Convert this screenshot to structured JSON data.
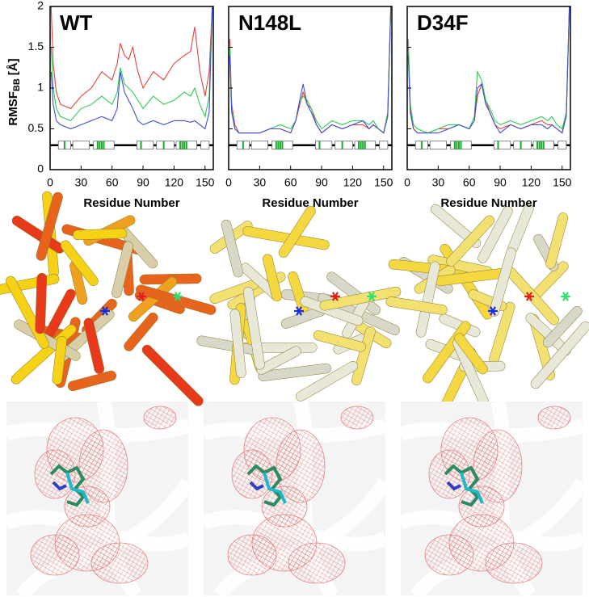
{
  "chart_data": [
    {
      "type": "line",
      "title": "WT",
      "xlabel": "Residue Number",
      "ylabel": {
        "main": "RMSF",
        "sub": "BB",
        "unit": "[Å]"
      },
      "xlim": [
        0,
        158
      ],
      "ylim": [
        0,
        2
      ],
      "xticks": [
        0,
        30,
        60,
        90,
        120,
        150
      ],
      "yticks": [
        0,
        0.5,
        1,
        1.5,
        2
      ],
      "x": [
        1,
        3,
        6,
        10,
        20,
        30,
        40,
        50,
        60,
        65,
        68,
        72,
        76,
        80,
        85,
        90,
        100,
        110,
        120,
        130,
        136,
        140,
        145,
        150,
        154,
        157
      ],
      "series": [
        {
          "name": "red",
          "color": "#e8413c",
          "values": [
            2,
            1.3,
            0.95,
            0.8,
            0.75,
            0.9,
            1.0,
            1.2,
            1.1,
            1.3,
            1.55,
            1.4,
            1.35,
            1.5,
            1.2,
            1.0,
            1.2,
            1.1,
            1.3,
            1.4,
            1.45,
            1.75,
            1.2,
            0.9,
            1.2,
            2
          ]
        },
        {
          "name": "green",
          "color": "#2ecc52",
          "values": [
            1.5,
            1.0,
            0.75,
            0.65,
            0.6,
            0.75,
            0.8,
            0.9,
            0.8,
            0.95,
            1.25,
            1.05,
            1.0,
            0.95,
            0.85,
            0.75,
            0.9,
            0.8,
            0.85,
            0.95,
            0.9,
            1.0,
            0.8,
            0.65,
            0.9,
            2
          ]
        },
        {
          "name": "blue",
          "color": "#3f4fd6",
          "values": [
            1.2,
            0.8,
            0.6,
            0.55,
            0.5,
            0.55,
            0.6,
            0.65,
            0.6,
            0.75,
            1.2,
            0.95,
            0.85,
            0.75,
            0.6,
            0.55,
            0.6,
            0.55,
            0.6,
            0.6,
            0.58,
            0.6,
            0.55,
            0.5,
            0.7,
            2
          ]
        }
      ]
    },
    {
      "type": "line",
      "title": "N148L",
      "xlabel": "Residue Number",
      "xlim": [
        0,
        158
      ],
      "ylim": [
        0,
        2
      ],
      "xticks": [
        0,
        30,
        60,
        90,
        120,
        150
      ],
      "yticks": [
        0,
        0.5,
        1,
        1.5,
        2
      ],
      "x": [
        1,
        3,
        6,
        10,
        20,
        30,
        40,
        50,
        60,
        65,
        68,
        72,
        76,
        80,
        85,
        90,
        100,
        110,
        120,
        130,
        136,
        140,
        145,
        150,
        154,
        157
      ],
      "series": [
        {
          "name": "red",
          "color": "#e8413c",
          "values": [
            1.6,
            0.8,
            0.55,
            0.45,
            0.45,
            0.45,
            0.5,
            0.5,
            0.45,
            0.6,
            0.75,
            0.95,
            0.8,
            0.75,
            0.55,
            0.45,
            0.55,
            0.5,
            0.55,
            0.55,
            0.5,
            0.55,
            0.5,
            0.45,
            0.7,
            2
          ]
        },
        {
          "name": "green",
          "color": "#2ecc52",
          "values": [
            1.5,
            0.75,
            0.5,
            0.45,
            0.45,
            0.45,
            0.5,
            0.55,
            0.5,
            0.6,
            0.8,
            0.9,
            0.85,
            0.75,
            0.6,
            0.5,
            0.6,
            0.55,
            0.6,
            0.6,
            0.55,
            0.6,
            0.5,
            0.45,
            0.7,
            2
          ]
        },
        {
          "name": "blue",
          "color": "#3f4fd6",
          "values": [
            1.4,
            0.7,
            0.5,
            0.45,
            0.45,
            0.45,
            0.5,
            0.5,
            0.45,
            0.6,
            0.8,
            1.05,
            0.8,
            0.7,
            0.55,
            0.45,
            0.55,
            0.5,
            0.55,
            0.6,
            0.5,
            0.55,
            0.5,
            0.45,
            0.65,
            2
          ]
        }
      ]
    },
    {
      "type": "line",
      "title": "D34F",
      "xlabel": "Residue Number",
      "xlim": [
        0,
        158
      ],
      "ylim": [
        0,
        2
      ],
      "xticks": [
        0,
        30,
        60,
        90,
        120,
        150
      ],
      "yticks": [
        0,
        0.5,
        1,
        1.5,
        2
      ],
      "x": [
        1,
        3,
        6,
        10,
        20,
        30,
        40,
        50,
        60,
        65,
        68,
        72,
        76,
        80,
        85,
        90,
        100,
        110,
        120,
        130,
        136,
        140,
        145,
        150,
        154,
        157
      ],
      "series": [
        {
          "name": "red",
          "color": "#e8413c",
          "values": [
            1.5,
            0.75,
            0.5,
            0.45,
            0.45,
            0.5,
            0.5,
            0.55,
            0.5,
            0.6,
            0.9,
            1.05,
            0.85,
            0.7,
            0.55,
            0.5,
            0.55,
            0.5,
            0.55,
            0.6,
            0.55,
            0.55,
            0.5,
            0.45,
            0.7,
            2
          ]
        },
        {
          "name": "green",
          "color": "#2ecc52",
          "values": [
            1.6,
            0.8,
            0.55,
            0.5,
            0.45,
            0.5,
            0.55,
            0.55,
            0.5,
            0.65,
            1.2,
            1.1,
            0.85,
            0.75,
            0.6,
            0.55,
            0.6,
            0.55,
            0.6,
            0.65,
            0.6,
            0.65,
            0.55,
            0.5,
            0.7,
            2
          ]
        },
        {
          "name": "blue",
          "color": "#3f4fd6",
          "values": [
            1.4,
            0.7,
            0.5,
            0.45,
            0.45,
            0.45,
            0.5,
            0.55,
            0.5,
            0.6,
            1.0,
            1.05,
            0.8,
            0.7,
            0.55,
            0.45,
            0.55,
            0.5,
            0.55,
            0.55,
            0.5,
            0.55,
            0.5,
            0.45,
            0.65,
            2
          ]
        }
      ]
    }
  ]
}
